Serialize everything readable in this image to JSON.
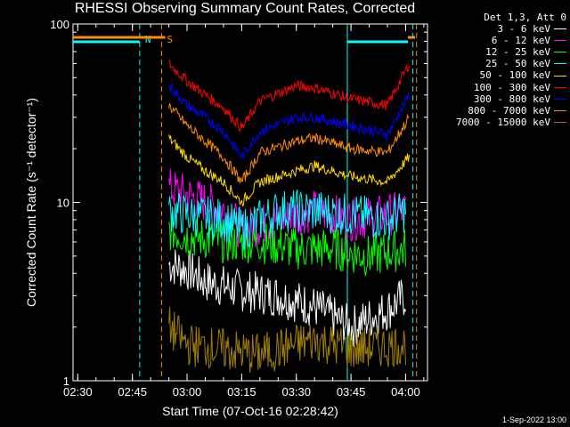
{
  "chart_data": {
    "type": "line",
    "title": "RHESSI Observing Summary Count Rates, Corrected",
    "xlabel": "Start Time (07-Oct-16 02:28:42)",
    "ylabel": "Corrected Count Rate (s⁻¹ detector⁻¹)",
    "x_ticks": [
      "02:30",
      "02:45",
      "03:00",
      "03:15",
      "03:30",
      "03:45",
      "04:00"
    ],
    "y_ticks": [
      "1",
      "10",
      "100"
    ],
    "ylim": [
      1,
      100
    ],
    "y_scale": "log",
    "legend_placement": "right",
    "legend_header": "Det 1,3, Att 0",
    "series": [
      {
        "name": "3 - 6 keV",
        "color": "#ffffff",
        "points": [
          [
            "02:55",
            4.5
          ],
          [
            "03:00",
            4.2
          ],
          [
            "03:05",
            3.6
          ],
          [
            "03:10",
            3.4
          ],
          [
            "03:15",
            3.2
          ],
          [
            "03:25",
            3.0
          ],
          [
            "03:35",
            2.6
          ],
          [
            "03:45",
            2.0
          ],
          [
            "03:55",
            2.5
          ],
          [
            "04:00",
            3.0
          ]
        ]
      },
      {
        "name": "6 - 12 keV",
        "color": "#ff00ff",
        "points": [
          [
            "02:55",
            12
          ],
          [
            "03:00",
            11
          ],
          [
            "03:05",
            10
          ],
          [
            "03:10",
            9
          ],
          [
            "03:15",
            7
          ],
          [
            "03:25",
            8
          ],
          [
            "03:35",
            9
          ],
          [
            "03:45",
            8
          ],
          [
            "03:55",
            8.5
          ],
          [
            "04:00",
            9
          ]
        ]
      },
      {
        "name": "12 - 25 keV",
        "color": "#00ff00",
        "points": [
          [
            "02:55",
            7
          ],
          [
            "03:00",
            6.5
          ],
          [
            "03:10",
            6
          ],
          [
            "03:20",
            6
          ],
          [
            "03:30",
            5.5
          ],
          [
            "03:40",
            5.5
          ],
          [
            "03:50",
            5
          ],
          [
            "04:00",
            5.5
          ]
        ]
      },
      {
        "name": "25 - 50 keV",
        "color": "#00ffff",
        "points": [
          [
            "02:55",
            9
          ],
          [
            "03:00",
            8.5
          ],
          [
            "03:10",
            8
          ],
          [
            "03:15",
            7
          ],
          [
            "03:25",
            9
          ],
          [
            "03:35",
            9
          ],
          [
            "03:45",
            8.5
          ],
          [
            "03:55",
            8
          ],
          [
            "04:00",
            9
          ]
        ]
      },
      {
        "name": "50 - 100 keV",
        "color": "#ffd700",
        "points": [
          [
            "02:55",
            23
          ],
          [
            "03:00",
            18
          ],
          [
            "03:05",
            15
          ],
          [
            "03:10",
            13
          ],
          [
            "03:15",
            10
          ],
          [
            "03:20",
            13
          ],
          [
            "03:30",
            15
          ],
          [
            "03:35",
            16
          ],
          [
            "03:45",
            14
          ],
          [
            "03:55",
            13
          ],
          [
            "04:01",
            18
          ]
        ]
      },
      {
        "name": "100 - 300 keV",
        "color": "#ff0000",
        "points": [
          [
            "02:55",
            60
          ],
          [
            "03:00",
            48
          ],
          [
            "03:05",
            40
          ],
          [
            "03:10",
            34
          ],
          [
            "03:15",
            26
          ],
          [
            "03:20",
            37
          ],
          [
            "03:30",
            45
          ],
          [
            "03:35",
            44
          ],
          [
            "03:45",
            38
          ],
          [
            "03:55",
            35
          ],
          [
            "04:01",
            60
          ]
        ]
      },
      {
        "name": "300 - 800 keV",
        "color": "#0000ff",
        "points": [
          [
            "02:55",
            45
          ],
          [
            "03:00",
            35
          ],
          [
            "03:05",
            30
          ],
          [
            "03:10",
            25
          ],
          [
            "03:15",
            18
          ],
          [
            "03:20",
            25
          ],
          [
            "03:30",
            30
          ],
          [
            "03:35",
            30
          ],
          [
            "03:45",
            27
          ],
          [
            "03:55",
            24
          ],
          [
            "04:01",
            40
          ]
        ]
      },
      {
        "name": "800 - 7000 keV",
        "color": "#ff8c00",
        "points": [
          [
            "02:55",
            35
          ],
          [
            "03:00",
            27
          ],
          [
            "03:05",
            22
          ],
          [
            "03:10",
            18
          ],
          [
            "03:15",
            13
          ],
          [
            "03:20",
            19
          ],
          [
            "03:30",
            22
          ],
          [
            "03:35",
            23
          ],
          [
            "03:45",
            20
          ],
          [
            "03:55",
            19
          ],
          [
            "04:01",
            30
          ]
        ]
      },
      {
        "name": "7000 - 15000 keV",
        "color": "#a08000",
        "points": [
          [
            "02:55",
            2
          ],
          [
            "03:00",
            1.6
          ],
          [
            "03:20",
            1.4
          ],
          [
            "03:35",
            1.7
          ],
          [
            "03:45",
            1.5
          ],
          [
            "04:00",
            1.6
          ]
        ]
      }
    ],
    "markers": [
      {
        "label": "N",
        "color": "#00ffff",
        "time": "02:47"
      },
      {
        "label": "S",
        "color": "#ff8c00",
        "time": "02:53"
      }
    ]
  },
  "footer": "1-Sep-2022 13:00"
}
